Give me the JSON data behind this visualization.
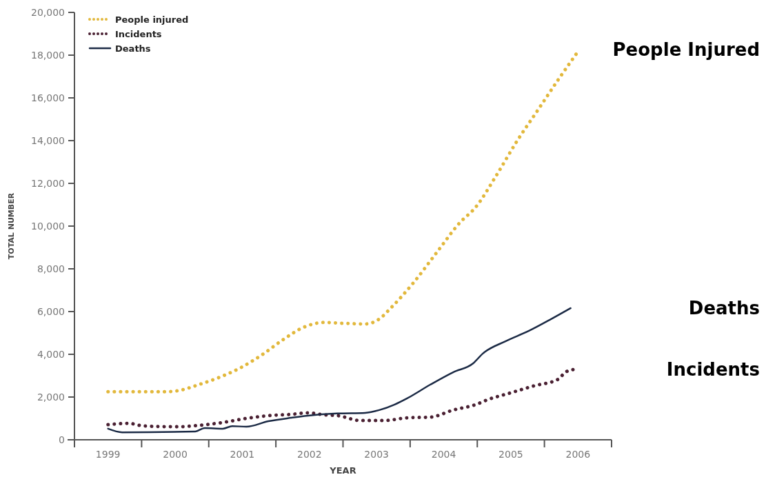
{
  "chart_data": {
    "type": "line",
    "xlabel": "YEAR",
    "ylabel": "TOTAL NUMBER",
    "xlim": [
      1999,
      2007
    ],
    "xticks": [
      {
        "value": 1999,
        "label": null
      },
      {
        "value": 1999.5,
        "label": "1999"
      },
      {
        "value": 2000,
        "label": null
      },
      {
        "value": 2000.5,
        "label": "2000"
      },
      {
        "value": 2001,
        "label": null
      },
      {
        "value": 2001.5,
        "label": "2001"
      },
      {
        "value": 2002,
        "label": null
      },
      {
        "value": 2002.5,
        "label": "2002"
      },
      {
        "value": 2003,
        "label": null
      },
      {
        "value": 2003.5,
        "label": "2003"
      },
      {
        "value": 2004,
        "label": null
      },
      {
        "value": 2004.5,
        "label": "2004"
      },
      {
        "value": 2005,
        "label": null
      },
      {
        "value": 2005.5,
        "label": "2005"
      },
      {
        "value": 2006,
        "label": null
      },
      {
        "value": 2006.5,
        "label": "2006"
      },
      {
        "value": 2007,
        "label": null
      }
    ],
    "ylim": [
      0,
      20000
    ],
    "yticks": [
      0,
      {
        "value": 2000,
        "label": "2,000"
      },
      {
        "value": 4000,
        "label": "4,000"
      },
      {
        "value": 6000,
        "label": "6,000"
      },
      {
        "value": 8000,
        "label": "8,000"
      },
      {
        "value": 10000,
        "label": "10,000"
      },
      {
        "value": 12000,
        "label": "12,000"
      },
      {
        "value": 14000,
        "label": "14,000"
      },
      {
        "value": 16000,
        "label": "16,000"
      },
      {
        "value": 18000,
        "label": "18,000"
      },
      {
        "value": 20000,
        "label": "20,000"
      }
    ],
    "grid": false,
    "legend": "top left",
    "marker": "none",
    "series": [
      {
        "name": "People injured",
        "color": "#e2b83c",
        "line_style": "dotted",
        "x": [
          1999.5,
          2000,
          2000.36,
          2000.53,
          2000.87,
          2001.18,
          2001.48,
          2001.79,
          2002.1,
          2002.41,
          2002.72,
          2003.02,
          2003.33,
          2003.54,
          2003.71,
          2004.05,
          2004.39,
          2004.74,
          2004.98,
          2005.28,
          2005.59,
          2005.9,
          2006.21,
          2006.52
        ],
        "values": [
          2250,
          2250,
          2250,
          2290,
          2600,
          2950,
          3380,
          3970,
          4670,
          5260,
          5490,
          5450,
          5420,
          5650,
          6160,
          7350,
          8740,
          10160,
          10900,
          12350,
          13970,
          15420,
          16870,
          18260
        ]
      },
      {
        "name": "Incidents",
        "color": "#4a2032",
        "line_style": "dotted",
        "x": [
          1999.5,
          1999.81,
          2000.02,
          2000.53,
          2000.87,
          2001.21,
          2001.56,
          2001.89,
          2002.23,
          2002.48,
          2002.74,
          2002.92,
          2003.26,
          2003.61,
          2003.96,
          2004.3,
          2004.64,
          2004.98,
          2005.15,
          2005.49,
          2005.84,
          2006.21,
          2006.31,
          2006.44
        ],
        "values": [
          710,
          770,
          650,
          610,
          680,
          810,
          1000,
          1130,
          1190,
          1260,
          1160,
          1130,
          900,
          900,
          1030,
          1060,
          1390,
          1650,
          1870,
          2190,
          2520,
          2840,
          3160,
          3290
        ]
      },
      {
        "name": "Deaths",
        "color": "#1b2a45",
        "line_style": "solid",
        "x": [
          1999.5,
          1999.71,
          2000.8,
          2000.94,
          2001.21,
          2001.35,
          2001.56,
          2001.89,
          2002.23,
          2002.58,
          2002.92,
          2003.33,
          2003.54,
          2003.77,
          2003.95,
          2004.3,
          2004.64,
          2004.94,
          2005.08,
          2005.42,
          2005.77,
          2006.1,
          2006.39
        ],
        "values": [
          520,
          350,
          390,
          550,
          520,
          640,
          610,
          870,
          1030,
          1160,
          1230,
          1260,
          1390,
          1650,
          1930,
          2580,
          3160,
          3580,
          4030,
          4610,
          5100,
          5650,
          6160
        ]
      }
    ],
    "annotations": [
      "People Injured",
      "Incidents",
      "Deaths"
    ]
  }
}
